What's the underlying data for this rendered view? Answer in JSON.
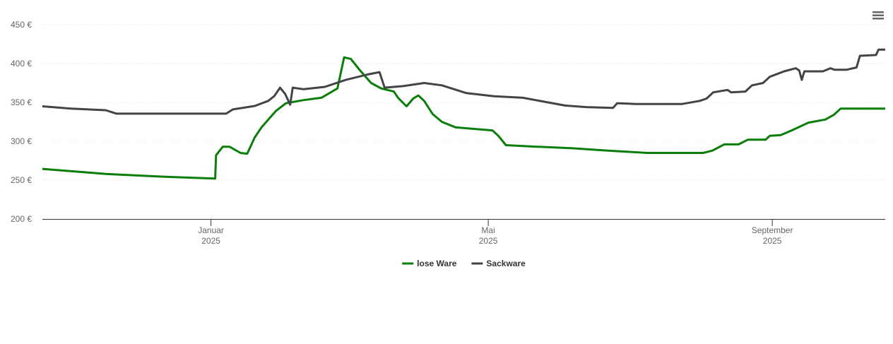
{
  "chart_data": {
    "type": "line",
    "xlim": [
      2024.8,
      2025.8
    ],
    "xticks": [
      {
        "value": 2025.0,
        "label": "Januar 2025"
      },
      {
        "value": 2025.329,
        "label": "Mai 2025"
      },
      {
        "value": 2025.666,
        "label": "September 2025"
      }
    ],
    "ylim": [
      200,
      450
    ],
    "yticks": [
      {
        "value": 200,
        "label": "200 €"
      },
      {
        "value": 250,
        "label": "250 €"
      },
      {
        "value": 300,
        "label": "300 €"
      },
      {
        "value": 350,
        "label": "350 €"
      },
      {
        "value": 400,
        "label": "400 €"
      },
      {
        "value": 450,
        "label": "450 €"
      }
    ],
    "grid": true,
    "legend": "bottom",
    "series": [
      {
        "name": "lose Ware",
        "color": "#0a7d0a",
        "x": [
          2024.8,
          2024.875,
          2024.943,
          2025.005,
          2025.006,
          2025.014,
          2025.022,
          2025.035,
          2025.043,
          2025.052,
          2025.06,
          2025.077,
          2025.089,
          2025.11,
          2025.131,
          2025.15,
          2025.158,
          2025.166,
          2025.177,
          2025.19,
          2025.202,
          2025.217,
          2025.222,
          2025.232,
          2025.24,
          2025.246,
          2025.253,
          2025.263,
          2025.274,
          2025.29,
          2025.311,
          2025.334,
          2025.341,
          2025.35,
          2025.387,
          2025.429,
          2025.471,
          2025.518,
          2025.584,
          2025.595,
          2025.609,
          2025.626,
          2025.637,
          2025.658,
          2025.663,
          2025.676,
          2025.689,
          2025.709,
          2025.729,
          2025.739,
          2025.747,
          2025.8
        ],
        "values": [
          264.5,
          258,
          254.5,
          252,
          282,
          293,
          293,
          285,
          284,
          305,
          318,
          339,
          349,
          353,
          356,
          368,
          408,
          406,
          391,
          375,
          368,
          364,
          356,
          345,
          355,
          359,
          352,
          335,
          325,
          318,
          316,
          314,
          307,
          295,
          293,
          291,
          288,
          285,
          285,
          288,
          296,
          296,
          302,
          302,
          307,
          308,
          314,
          324,
          328,
          334,
          342,
          342
        ]
      },
      {
        "name": "Sackware",
        "color": "#434348",
        "x": [
          2024.8,
          2024.834,
          2024.875,
          2024.888,
          2025.018,
          2025.026,
          2025.052,
          2025.068,
          2025.075,
          2025.082,
          2025.088,
          2025.094,
          2025.097,
          2025.11,
          2025.135,
          2025.16,
          2025.186,
          2025.2,
          2025.206,
          2025.228,
          2025.253,
          2025.274,
          2025.303,
          2025.336,
          2025.37,
          2025.42,
          2025.445,
          2025.477,
          2025.482,
          2025.504,
          2025.559,
          2025.58,
          2025.588,
          2025.596,
          2025.613,
          2025.617,
          2025.634,
          2025.642,
          2025.655,
          2025.663,
          2025.68,
          2025.694,
          2025.698,
          2025.701,
          2025.704,
          2025.726,
          2025.735,
          2025.74,
          2025.754,
          2025.766,
          2025.77,
          2025.789,
          2025.792,
          2025.8
        ],
        "values": [
          345,
          342,
          340,
          335.5,
          335.5,
          341,
          345.5,
          352,
          358,
          369,
          361,
          347,
          369,
          367,
          370,
          379,
          386,
          389,
          369,
          371,
          375,
          372,
          362,
          358,
          356,
          346,
          344,
          343,
          349,
          348,
          348,
          352,
          355,
          363,
          366,
          363,
          364,
          372,
          375,
          383,
          390,
          394,
          391,
          379,
          390,
          390,
          394,
          392,
          392,
          395,
          410,
          411,
          418,
          418
        ]
      }
    ]
  }
}
